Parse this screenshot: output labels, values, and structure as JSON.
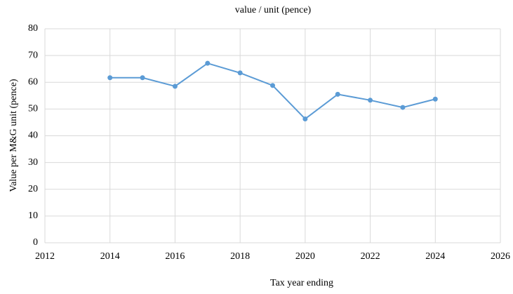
{
  "chart_data": {
    "type": "line",
    "title": "value / unit (pence)",
    "xlabel": "Tax year ending",
    "ylabel": "Value per M&G unit (pence)",
    "x": [
      2014,
      2015,
      2016,
      2017,
      2018,
      2019,
      2020,
      2021,
      2022,
      2023,
      2024
    ],
    "series": [
      {
        "name": "value / unit (pence)",
        "color": "#5b9bd5",
        "values": [
          61.7,
          61.7,
          58.5,
          67.1,
          63.5,
          58.8,
          46.3,
          55.5,
          53.3,
          50.6,
          53.7
        ]
      }
    ],
    "xlim": [
      2012,
      2026
    ],
    "xticks": [
      2012,
      2014,
      2016,
      2018,
      2020,
      2022,
      2024,
      2026
    ],
    "ylim": [
      0,
      80
    ],
    "yticks": [
      0,
      10,
      20,
      30,
      40,
      50,
      60,
      70,
      80
    ],
    "grid": true
  }
}
